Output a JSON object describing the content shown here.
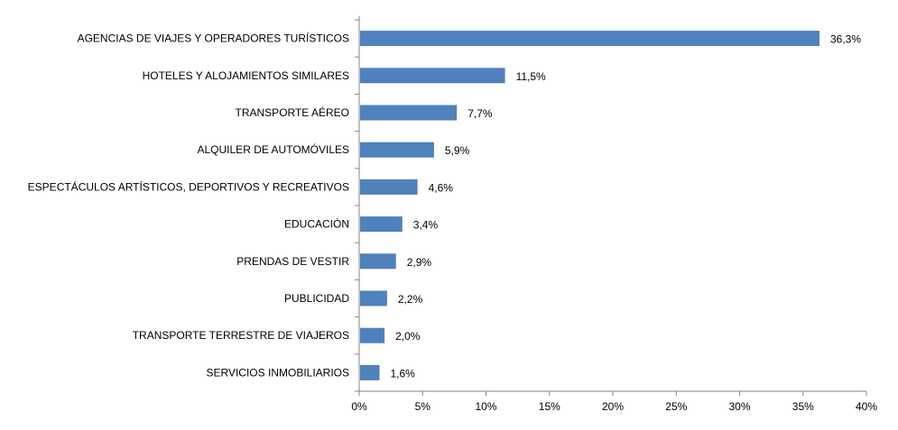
{
  "chart_data": {
    "type": "bar",
    "orientation": "horizontal",
    "title": "",
    "xlabel": "",
    "ylabel": "",
    "categories": [
      "AGENCIAS DE VIAJES Y OPERADORES TURÍSTICOS",
      "HOTELES  Y ALOJAMIENTOS SIMILARES",
      "TRANSPORTE AÉREO",
      "ALQUILER DE AUTOMÓVILES",
      "ESPECTÁCULOS ARTÍSTICOS, DEPORTIVOS Y RECREATIVOS",
      "EDUCACIÓN",
      "PRENDAS DE VESTIR",
      "PUBLICIDAD",
      "TRANSPORTE TERRESTRE DE VIAJEROS",
      "SERVICIOS INMOBILIARIOS"
    ],
    "values": [
      36.3,
      11.5,
      7.7,
      5.9,
      4.6,
      3.4,
      2.9,
      2.2,
      2.0,
      1.6
    ],
    "value_labels": [
      "36,3%",
      "11,5%",
      "7,7%",
      "5,9%",
      "4,6%",
      "3,4%",
      "2,9%",
      "2,2%",
      "2,0%",
      "1,6%"
    ],
    "xlim": [
      0,
      40
    ],
    "x_ticks": [
      0,
      5,
      10,
      15,
      20,
      25,
      30,
      35,
      40
    ],
    "x_tick_labels": [
      "0%",
      "5%",
      "10%",
      "15%",
      "20%",
      "25%",
      "30%",
      "35%",
      "40%"
    ],
    "grid": false,
    "legend": "none",
    "bar_color": "#4F81BD",
    "axis_color": "#868686"
  }
}
